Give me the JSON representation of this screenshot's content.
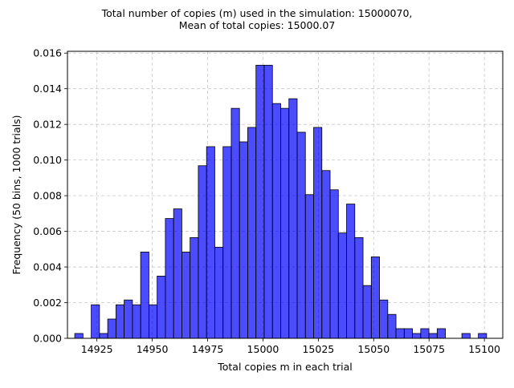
{
  "chart_data": {
    "type": "bar",
    "title_line1": "Total number of copies (m) used in the simulation: 15000070,",
    "title_line2": "Mean of total copies: 15000.07",
    "xlabel": "Total copies m in each trial",
    "ylabel": "Frequency (50 bins, 1000 trials)",
    "xlim": [
      14911.7,
      15108.3
    ],
    "ylim": [
      0,
      0.0161
    ],
    "grid": true,
    "bar_color": "#0000ff",
    "bar_opacity": 0.7,
    "edge_color": "#000000",
    "bins_start": 14915.0,
    "bin_width": 3.72,
    "frequencies": [
      0.00027,
      0.0,
      0.00188,
      0.00027,
      0.00108,
      0.00188,
      0.00215,
      0.00188,
      0.00484,
      0.00188,
      0.00349,
      0.00672,
      0.00726,
      0.00484,
      0.00565,
      0.00968,
      0.01075,
      0.00511,
      0.01075,
      0.0129,
      0.01102,
      0.01183,
      0.01532,
      0.01532,
      0.01317,
      0.0129,
      0.01344,
      0.01156,
      0.00806,
      0.01183,
      0.00941,
      0.00833,
      0.00591,
      0.00753,
      0.00565,
      0.00296,
      0.00457,
      0.00215,
      0.00134,
      0.00054,
      0.00054,
      0.00027,
      0.00054,
      0.00027,
      0.00054,
      0.0,
      0.0,
      0.00027,
      0.0,
      0.00027
    ],
    "x_ticks": [
      14925,
      14950,
      14975,
      15000,
      15025,
      15050,
      15075,
      15100
    ],
    "x_tick_labels": [
      "14925",
      "14950",
      "14975",
      "15000",
      "15025",
      "15050",
      "15075",
      "15100"
    ],
    "y_ticks": [
      0,
      0.002,
      0.004,
      0.006,
      0.008,
      0.01,
      0.012,
      0.014,
      0.016
    ],
    "y_tick_labels": [
      "0.000",
      "0.002",
      "0.004",
      "0.006",
      "0.008",
      "0.010",
      "0.012",
      "0.014",
      "0.016"
    ]
  }
}
